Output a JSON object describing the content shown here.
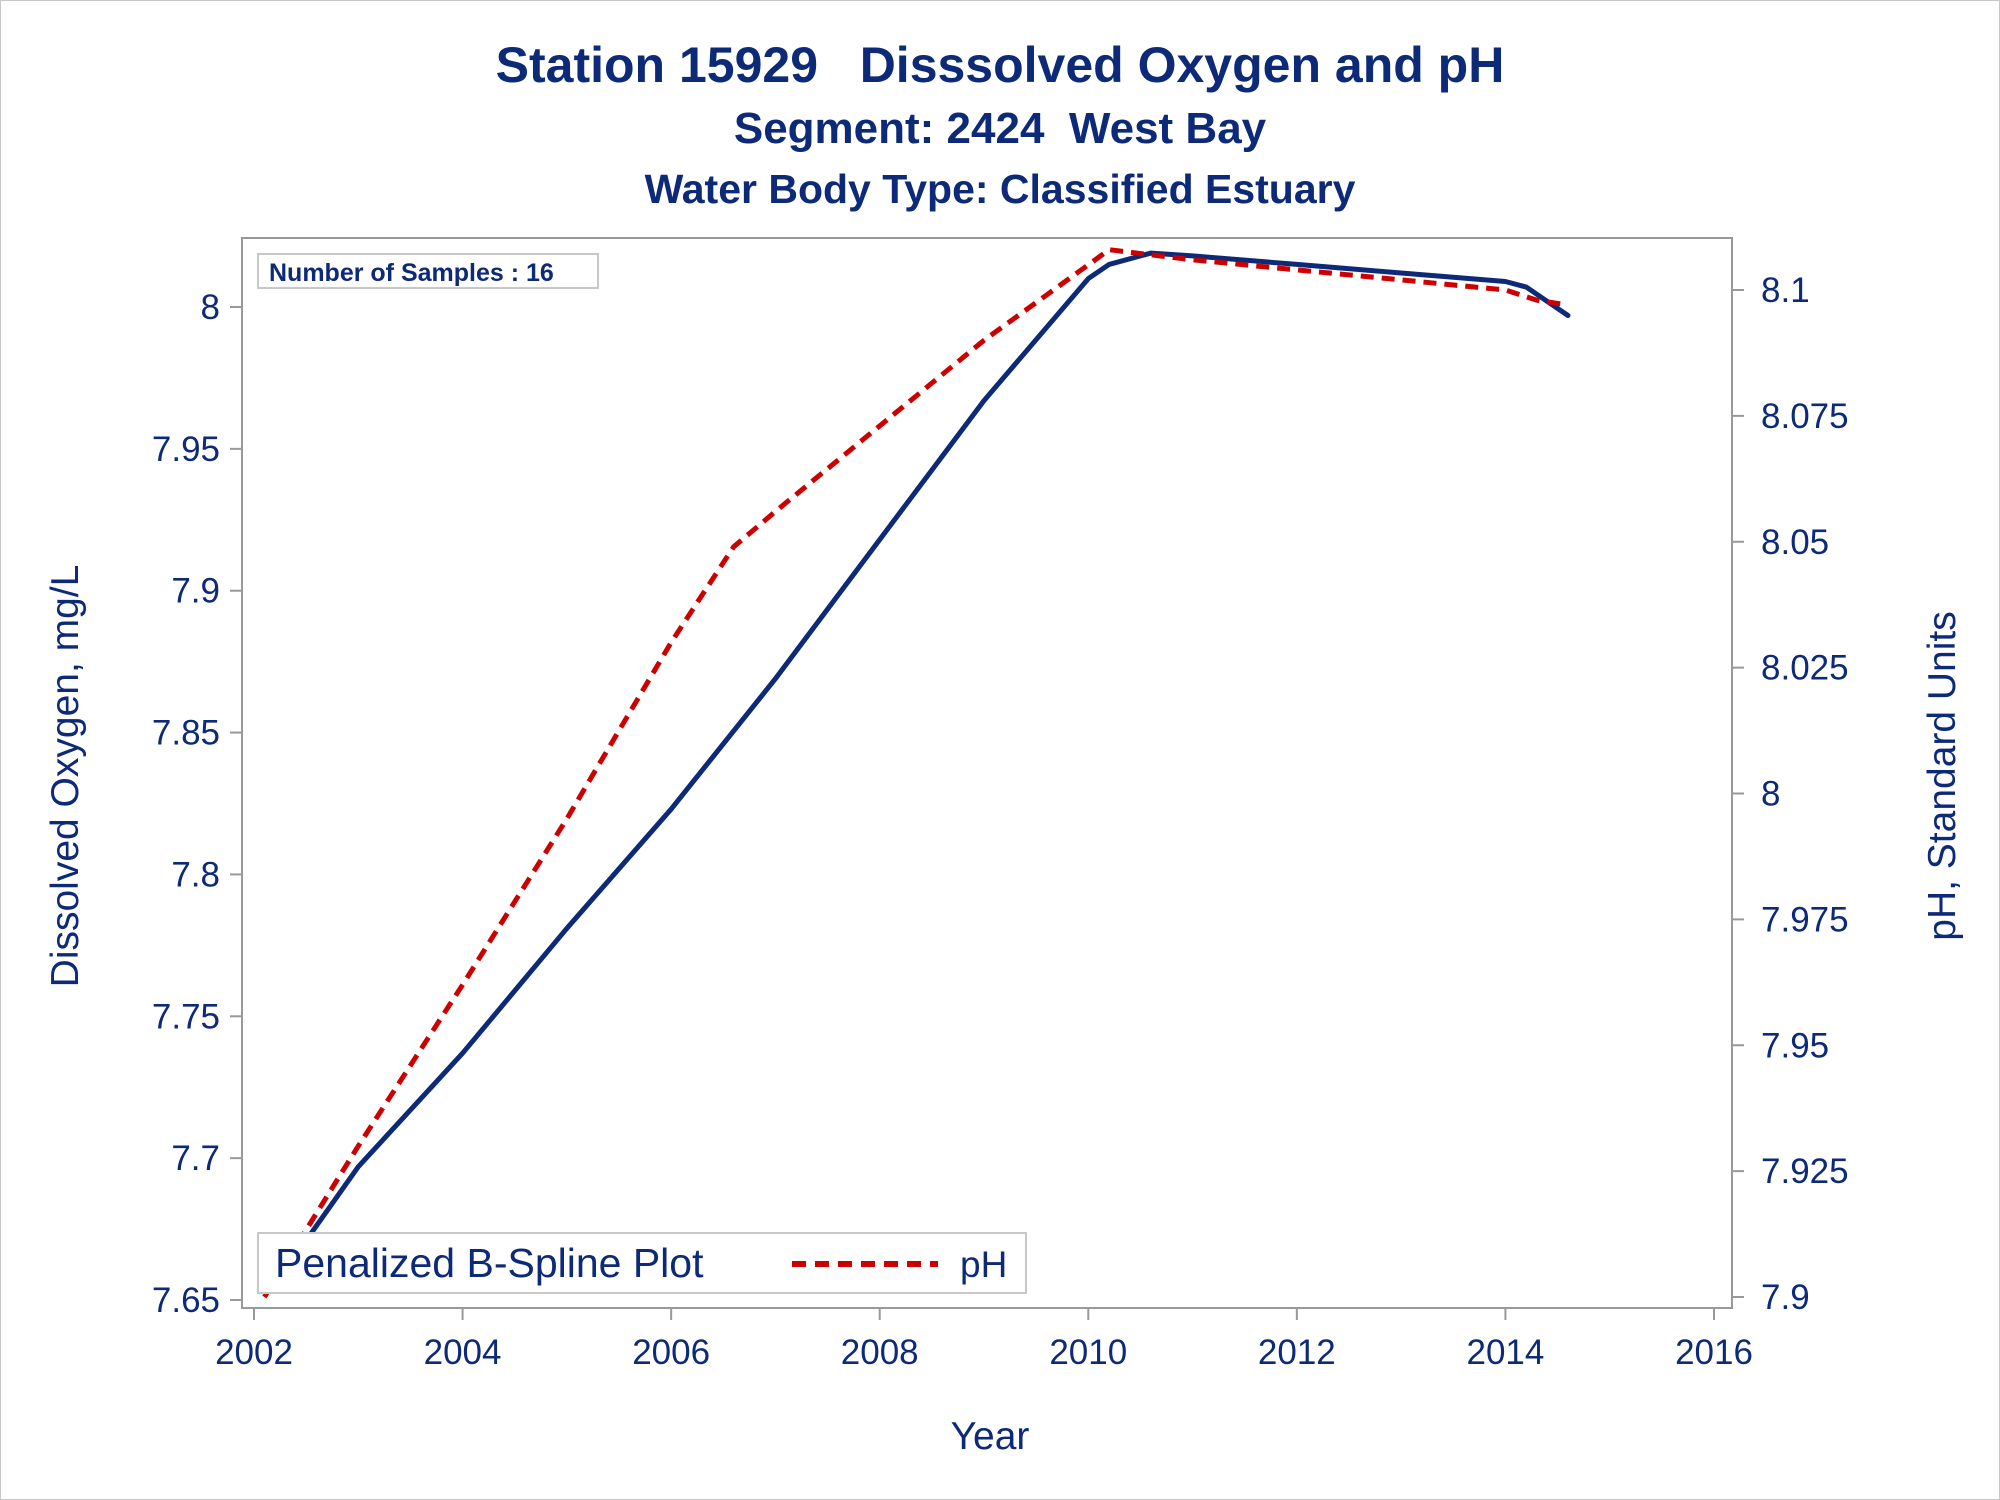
{
  "titles": {
    "line1": "Station 15929   Disssolved Oxygen and pH",
    "line2": "Segment: 2424  West Bay",
    "line3": "Water Body Type: Classified Estuary"
  },
  "badge": "Number of Samples : 16",
  "legend": {
    "do_label": "Penalized B-Spline Plot",
    "ph_label": "pH"
  },
  "colors": {
    "dissolved_oxygen": "#0d2a78",
    "ph": "#cc0000",
    "axis": "#999999",
    "text": "#0d2a78"
  },
  "chart_data": {
    "type": "line",
    "xlabel": "Year",
    "ylabel": "Dissolved Oxygen, mg/L",
    "y2label": "pH, Standard Units",
    "xlim": [
      2002,
      2016
    ],
    "ylim": [
      7.65,
      8.0
    ],
    "y2lim": [
      7.9,
      8.1
    ],
    "x_ticks": [
      "2002",
      "2004",
      "2006",
      "2008",
      "2010",
      "2012",
      "2014",
      "2016"
    ],
    "y_ticks": [
      "7.65",
      "7.7",
      "7.75",
      "7.8",
      "7.85",
      "7.9",
      "7.95",
      "8"
    ],
    "y2_ticks": [
      "7.9",
      "7.925",
      "7.95",
      "7.975",
      "8",
      "8.025",
      "8.05",
      "8.075",
      "8.1"
    ],
    "grid": false,
    "legend_position": "bottom-left",
    "series": [
      {
        "name": "Penalized B-Spline Plot",
        "axis": "left",
        "style": "solid",
        "x": [
          2002.1,
          2002.5,
          2003,
          2004,
          2005,
          2006,
          2007,
          2008,
          2009,
          2010,
          2010.2,
          2010.6,
          2011,
          2012,
          2013,
          2014,
          2014.2,
          2014.4,
          2014.6
        ],
        "y": [
          7.661,
          7.671,
          7.697,
          7.737,
          7.781,
          7.823,
          7.869,
          7.918,
          7.967,
          8.01,
          8.015,
          8.019,
          8.018,
          8.015,
          8.012,
          8.009,
          8.007,
          8.002,
          7.997
        ]
      },
      {
        "name": "pH",
        "axis": "right",
        "style": "dashed",
        "x": [
          2002.1,
          2003,
          2004,
          2005,
          2006,
          2006.6,
          2007,
          2008,
          2009,
          2010,
          2010.2,
          2010.6,
          2011,
          2012,
          2013,
          2014,
          2014.3,
          2014.6
        ],
        "y": [
          7.9,
          7.93,
          7.962,
          7.995,
          8.03,
          8.049,
          8.056,
          8.073,
          8.09,
          8.105,
          8.108,
          8.107,
          8.106,
          8.104,
          8.102,
          8.1,
          8.098,
          8.097
        ]
      }
    ]
  }
}
